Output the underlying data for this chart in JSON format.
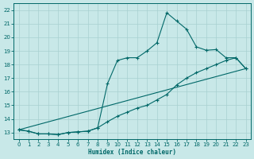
{
  "xlabel": "Humidex (Indice chaleur)",
  "bg_color": "#c8e8e8",
  "grid_color": "#a8d0d0",
  "line_color": "#006868",
  "xlim": [
    -0.5,
    23.5
  ],
  "ylim": [
    12.5,
    22.5
  ],
  "xticks": [
    0,
    1,
    2,
    3,
    4,
    5,
    6,
    7,
    8,
    9,
    10,
    11,
    12,
    13,
    14,
    15,
    16,
    17,
    18,
    19,
    20,
    21,
    22,
    23
  ],
  "yticks": [
    13,
    14,
    15,
    16,
    17,
    18,
    19,
    20,
    21,
    22
  ],
  "line1_x": [
    0,
    1,
    2,
    3,
    4,
    5,
    6,
    7,
    8,
    9,
    10,
    11,
    12,
    13,
    14,
    15,
    16,
    17,
    18,
    19,
    20,
    21,
    22,
    23
  ],
  "line1_y": [
    13.2,
    13.1,
    12.9,
    12.9,
    12.85,
    13.0,
    13.05,
    13.1,
    13.35,
    16.6,
    18.3,
    18.5,
    18.5,
    19.0,
    19.6,
    21.8,
    21.2,
    20.6,
    19.3,
    19.05,
    19.1,
    18.5,
    18.5,
    17.7
  ],
  "line2_x": [
    0,
    1,
    2,
    3,
    4,
    5,
    6,
    7,
    8,
    9,
    10,
    11,
    12,
    13,
    14,
    15,
    16,
    17,
    18,
    19,
    20,
    21,
    22,
    23
  ],
  "line2_y": [
    13.2,
    13.1,
    12.9,
    12.9,
    12.85,
    13.0,
    13.05,
    13.1,
    13.35,
    13.8,
    14.2,
    14.5,
    14.8,
    15.0,
    15.4,
    15.8,
    16.5,
    17.0,
    17.4,
    17.7,
    18.0,
    18.3,
    18.5,
    17.7
  ],
  "line3_x": [
    0,
    23
  ],
  "line3_y": [
    13.2,
    17.7
  ]
}
